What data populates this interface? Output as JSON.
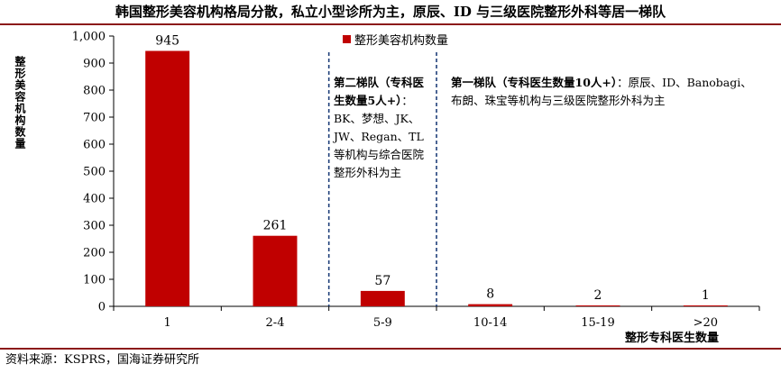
{
  "header": {
    "title": "韩国整形美容机构格局分散，私立小型诊所为主，原辰、ID 与三级医院整形外科等居一梯队"
  },
  "footer": {
    "source": "资料来源：KSPRS，国海证券研究所"
  },
  "annotations": {
    "tier2": {
      "head": "第二梯队（专科医生数量5人+）",
      "body": "：BK、梦想、JK、JW、Regan、TL等机构与综合医院整形外科为主"
    },
    "tier1": {
      "head": "第一梯队（专科医生数量10人+）",
      "body": "：原辰、ID、Banobagi、布朗、珠宝等机构与三级医院整形外科为主"
    }
  },
  "chart_data": {
    "type": "bar",
    "categories": [
      "1",
      "2-4",
      "5-9",
      "10-14",
      "15-19",
      ">20"
    ],
    "series": [
      {
        "name": "整形美容机构数量",
        "values": [
          945,
          261,
          57,
          8,
          2,
          1
        ],
        "color": "#c00000"
      }
    ],
    "data_labels": [
      "945",
      "261",
      "57",
      "8",
      "2",
      "1"
    ],
    "ylim": [
      0,
      1000
    ],
    "yticks": [
      0,
      100,
      200,
      300,
      400,
      500,
      600,
      700,
      800,
      900,
      1000
    ],
    "ytick_labels": [
      "0",
      "100",
      "200",
      "300",
      "400",
      "500",
      "600",
      "700",
      "800",
      "900",
      "1,000"
    ],
    "xlabel": "整形专科医生数量",
    "ylabel": "整形美容机构数量",
    "legend_position": "top-center",
    "grid": false
  }
}
